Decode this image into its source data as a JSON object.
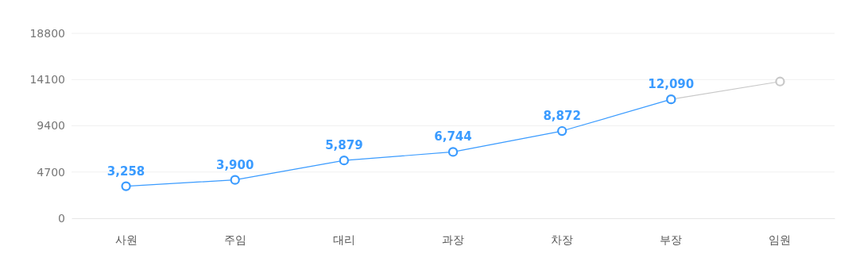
{
  "chart_data": {
    "type": "line",
    "categories": [
      "사원",
      "주임",
      "대리",
      "과장",
      "차장",
      "부장",
      "임원"
    ],
    "series": [
      {
        "color": "#c8c8c8",
        "values": [
          null,
          null,
          null,
          null,
          null,
          12090,
          13900
        ]
      },
      {
        "color": "#3a9bff",
        "values": [
          3258,
          3900,
          5879,
          6744,
          8872,
          12090,
          null
        ],
        "value_labels": [
          "3,258",
          "3,900",
          "5,879",
          "6,744",
          "8,872",
          "12,090",
          null
        ]
      }
    ],
    "ylim": [
      0,
      18800
    ],
    "yticks": [
      0,
      4700,
      9400,
      14100,
      18800
    ],
    "grid": "y",
    "marker": "circle",
    "line_style": "solid"
  }
}
